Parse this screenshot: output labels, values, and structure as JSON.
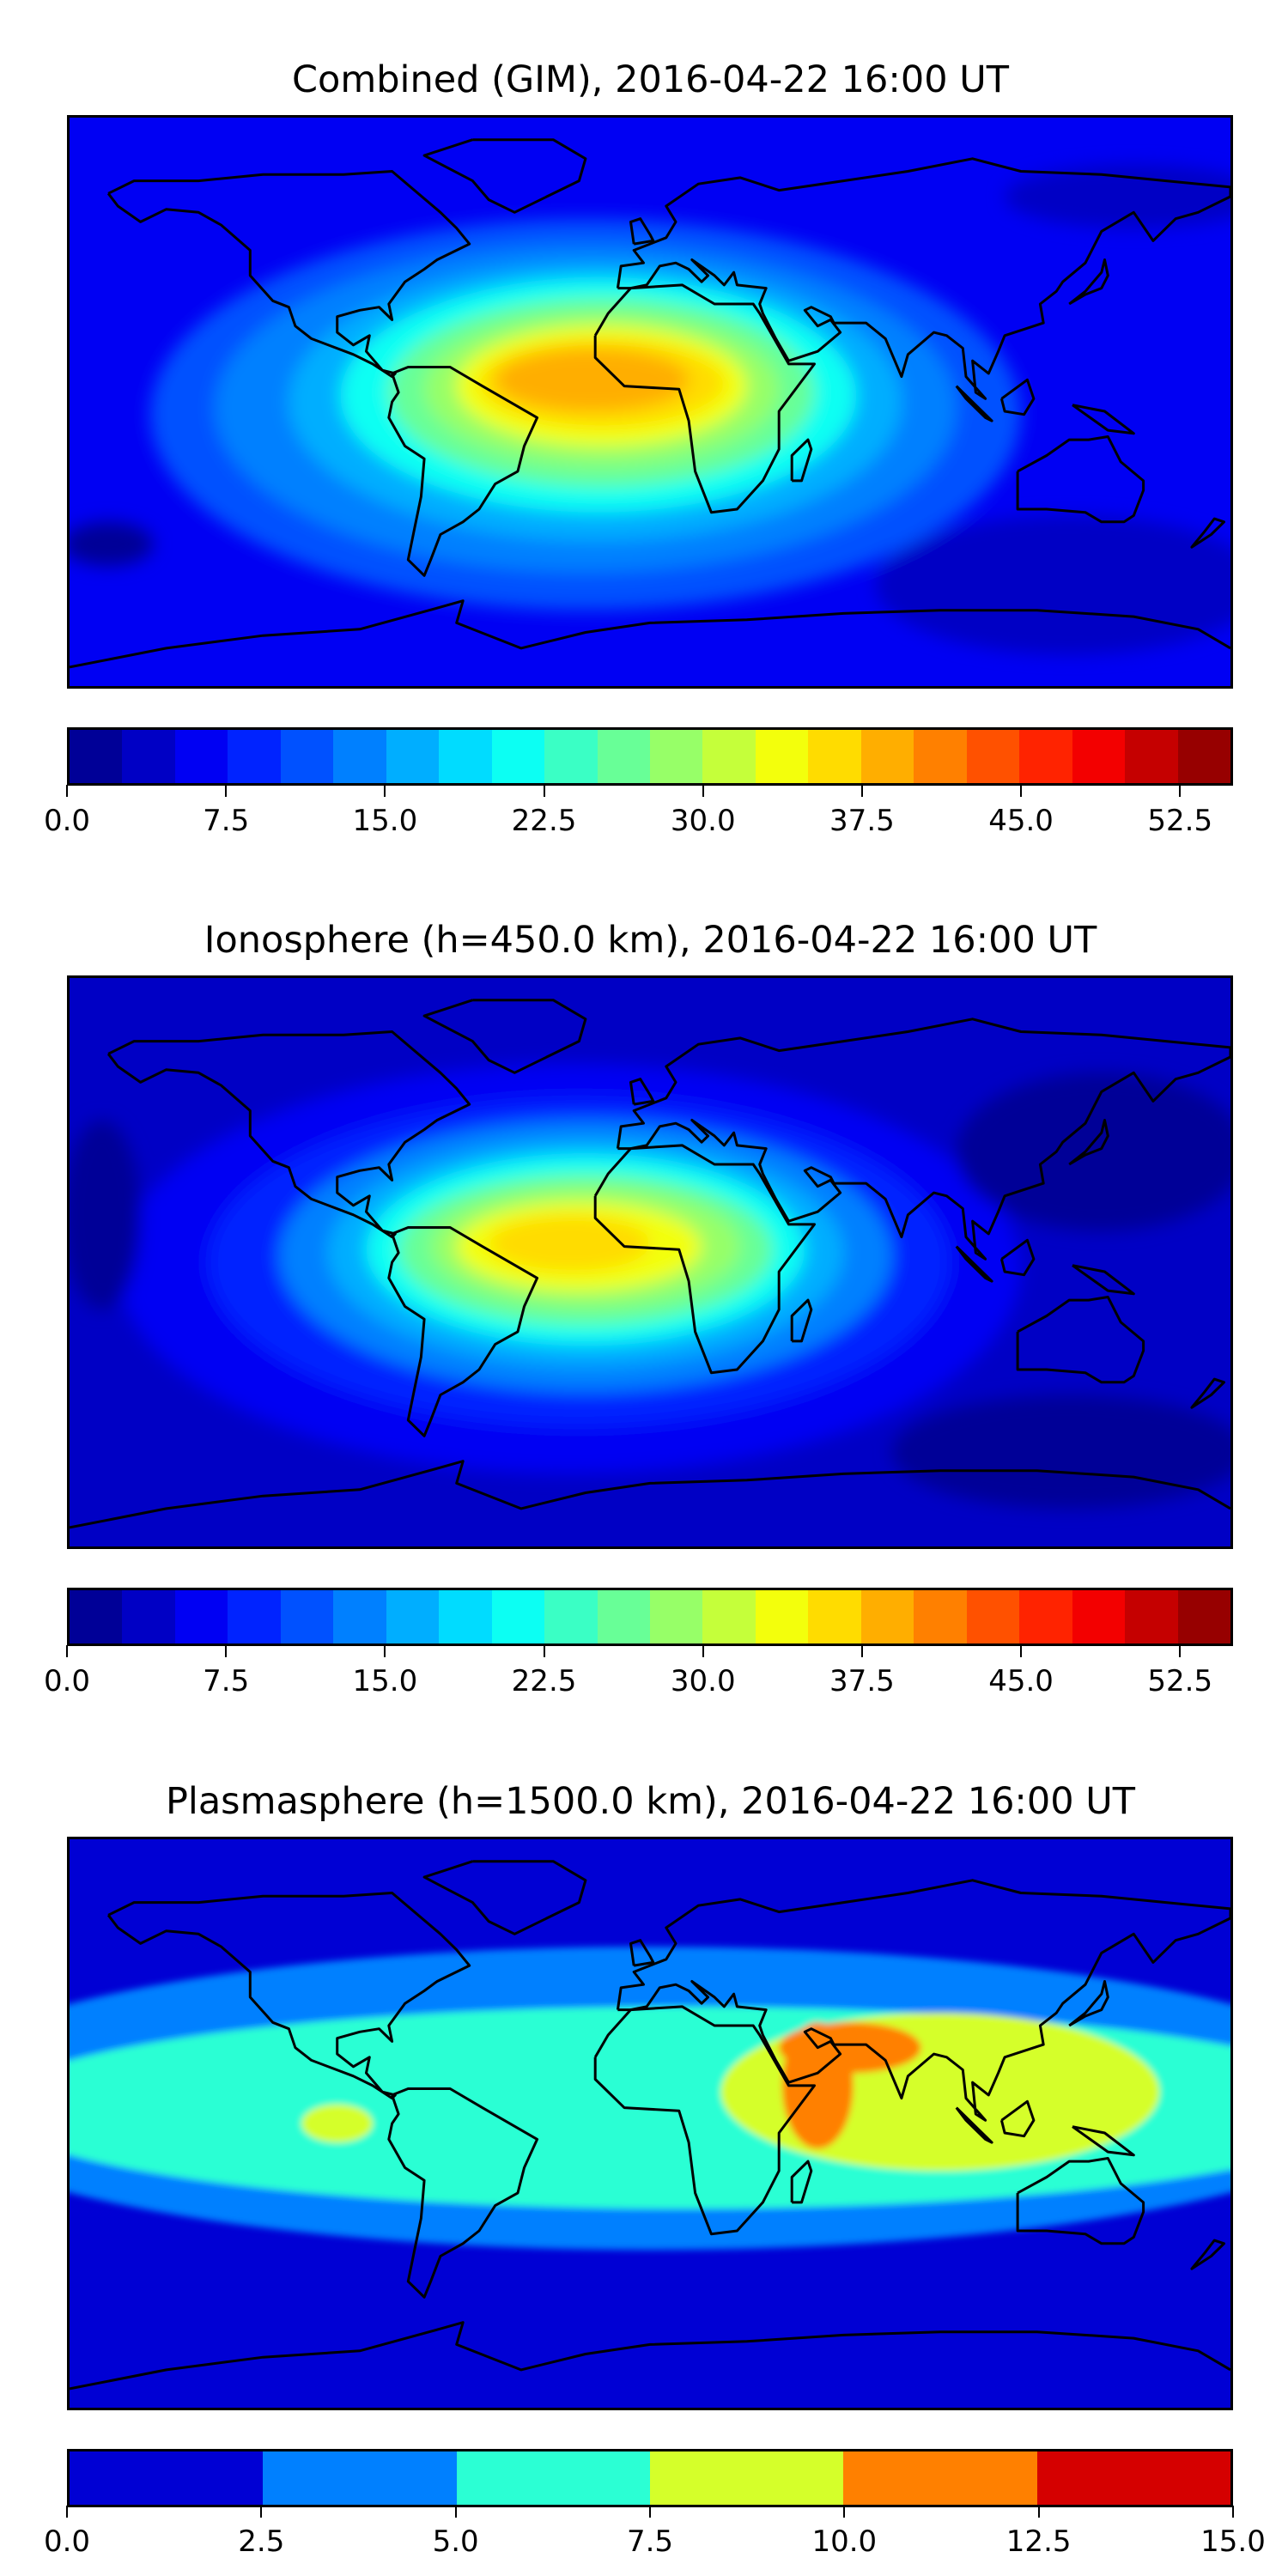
{
  "chart_data": [
    {
      "type": "heatmap",
      "title": "Combined (GIM), 2016-04-22 16:00 UT",
      "projection": "equirectangular",
      "xlim": [
        -180,
        180
      ],
      "ylim": [
        -90,
        90
      ],
      "colormap": "jet",
      "colorbar": {
        "min": 0.0,
        "max": 55.0,
        "step": 2.5,
        "ticks": [
          "0.0",
          "7.5",
          "15.0",
          "22.5",
          "30.0",
          "37.5",
          "45.0",
          "52.5"
        ],
        "tick_values": [
          0,
          7.5,
          15,
          22.5,
          30,
          37.5,
          45,
          52.5
        ]
      },
      "background_value": 6,
      "peak_value": 40,
      "peak_region": "tropical South America / Atlantic / West Africa",
      "contours": [
        {
          "lon": -20,
          "lat": -4,
          "rlon": 135,
          "rlat": 62,
          "value": 11
        },
        {
          "lon": -20,
          "lat": -2,
          "rlon": 115,
          "rlat": 52,
          "value": 14
        },
        {
          "lon": -17,
          "lat": 0,
          "rlon": 95,
          "rlat": 44,
          "value": 17
        },
        {
          "lon": -16,
          "lat": 2,
          "rlon": 80,
          "rlat": 37,
          "value": 21
        },
        {
          "lon": -15,
          "lat": 3,
          "rlon": 66,
          "rlat": 30,
          "value": 25
        },
        {
          "lon": -15,
          "lat": 4,
          "rlon": 55,
          "rlat": 24,
          "value": 29
        },
        {
          "lon": -15,
          "lat": 5,
          "rlon": 45,
          "rlat": 19,
          "value": 33
        },
        {
          "lon": -15,
          "lat": 6,
          "rlon": 38,
          "rlat": 14,
          "value": 36
        },
        {
          "lon": -18,
          "lat": 7,
          "rlon": 30,
          "rlat": 10,
          "value": 39
        },
        {
          "lon": 130,
          "lat": -58,
          "rlon": 60,
          "rlat": 22,
          "value": 3.5
        },
        {
          "lon": -168,
          "lat": -45,
          "rlon": 14,
          "rlat": 7,
          "value": 1.5
        },
        {
          "lon": 150,
          "lat": 65,
          "rlon": 40,
          "rlat": 10,
          "value": 4
        }
      ]
    },
    {
      "type": "heatmap",
      "title": "Ionosphere  (h=450.0 km), 2016-04-22 16:00 UT",
      "projection": "equirectangular",
      "xlim": [
        -180,
        180
      ],
      "ylim": [
        -90,
        90
      ],
      "colormap": "jet",
      "colorbar": {
        "min": 0.0,
        "max": 55.0,
        "step": 2.5,
        "ticks": [
          "0.0",
          "7.5",
          "15.0",
          "22.5",
          "30.0",
          "37.5",
          "45.0",
          "52.5"
        ],
        "tick_values": [
          0,
          7.5,
          15,
          22.5,
          30,
          37.5,
          45,
          52.5
        ]
      },
      "background_value": 4,
      "peak_value": 36,
      "peak_region": "tropical South America / Atlantic",
      "contours": [
        {
          "lon": -25,
          "lat": -2,
          "rlon": 140,
          "rlat": 65,
          "value": 6
        },
        {
          "lon": -22,
          "lat": 0,
          "rlon": 115,
          "rlat": 52,
          "value": 9
        },
        {
          "lon": -20,
          "lat": 2,
          "rlon": 95,
          "rlat": 43,
          "value": 13
        },
        {
          "lon": -20,
          "lat": 3,
          "rlon": 80,
          "rlat": 36,
          "value": 17
        },
        {
          "lon": -20,
          "lat": 4,
          "rlon": 68,
          "rlat": 30,
          "value": 21
        },
        {
          "lon": -20,
          "lat": 4,
          "rlon": 58,
          "rlat": 24,
          "value": 25
        },
        {
          "lon": -20,
          "lat": 5,
          "rlon": 48,
          "rlat": 19,
          "value": 29
        },
        {
          "lon": -22,
          "lat": 5,
          "rlon": 38,
          "rlat": 14,
          "value": 33
        },
        {
          "lon": -25,
          "lat": 6,
          "rlon": 25,
          "rlat": 9,
          "value": 36
        },
        {
          "lon": 130,
          "lat": -60,
          "rlon": 55,
          "rlat": 18,
          "value": 2
        },
        {
          "lon": 140,
          "lat": 35,
          "rlon": 45,
          "rlat": 25,
          "value": 2
        },
        {
          "lon": -170,
          "lat": 15,
          "rlon": 12,
          "rlat": 30,
          "value": 2
        }
      ]
    },
    {
      "type": "heatmap",
      "title": "Plasmasphere (h=1500.0 km), 2016-04-22 16:00 UT",
      "projection": "equirectangular",
      "xlim": [
        -180,
        180
      ],
      "ylim": [
        -90,
        90
      ],
      "colormap": "jet",
      "colorbar": {
        "min": 0.0,
        "max": 15.0,
        "step": 2.5,
        "ticks": [
          "0.0",
          "2.5",
          "5.0",
          "7.5",
          "10.0",
          "12.5",
          "15.0"
        ],
        "tick_values": [
          0,
          2.5,
          5,
          7.5,
          10,
          12.5,
          15
        ]
      },
      "background_value": 1.5,
      "peak_value": 11,
      "peak_region": "Arabian Sea / East Africa",
      "contours": [
        {
          "lon": 0,
          "lat": 8,
          "rlon": 230,
          "rlat": 48,
          "value": 3.5
        },
        {
          "lon": 10,
          "lat": 5,
          "rlon": 215,
          "rlat": 32,
          "value": 6
        },
        {
          "lon": 90,
          "lat": 10,
          "rlon": 68,
          "rlat": 25,
          "value": 8.5
        },
        {
          "lon": -97,
          "lat": 0,
          "rlon": 11,
          "rlat": 6,
          "value": 8.5
        },
        {
          "lon": 52,
          "lat": 12,
          "rlon": 11,
          "rlat": 20,
          "value": 11
        },
        {
          "lon": 62,
          "lat": 24,
          "rlon": 22,
          "rlat": 8,
          "value": 11
        }
      ]
    }
  ]
}
